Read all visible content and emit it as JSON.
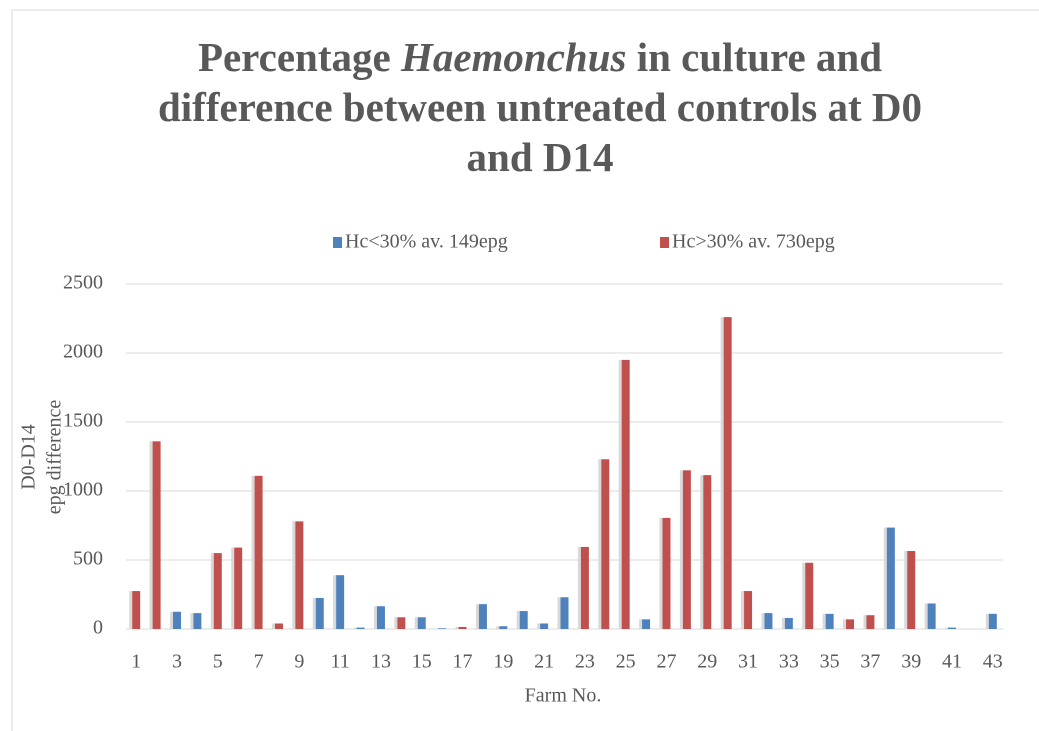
{
  "chart_data": {
    "type": "bar",
    "title_parts": [
      "Percentage ",
      "Haemonchus",
      " in culture and difference between untreated controls at D0 and D14"
    ],
    "x_label": "Farm No.",
    "y_label": [
      "D0-D14",
      "epg difference"
    ],
    "categories": [
      1,
      null,
      3,
      null,
      5,
      null,
      7,
      null,
      9,
      null,
      11,
      null,
      13,
      null,
      15,
      null,
      17,
      null,
      19,
      null,
      21,
      null,
      23,
      null,
      25,
      null,
      27,
      null,
      29,
      null,
      31,
      null,
      33,
      null,
      35,
      null,
      37,
      null,
      39,
      null,
      41,
      null,
      43
    ],
    "series": [
      {
        "name": "Hc<30% av. 149epg",
        "color": "#4f81bd",
        "values": [
          null,
          null,
          125,
          115,
          null,
          null,
          null,
          null,
          null,
          225,
          390,
          10,
          165,
          null,
          85,
          5,
          null,
          180,
          20,
          130,
          40,
          230,
          null,
          null,
          null,
          70,
          null,
          null,
          null,
          null,
          null,
          115,
          80,
          null,
          110,
          null,
          null,
          735,
          null,
          185,
          10,
          null,
          110
        ]
      },
      {
        "name": "Hc>30% av. 730epg",
        "color": "#c0504d",
        "values": [
          275,
          1360,
          null,
          null,
          550,
          590,
          1110,
          40,
          780,
          null,
          null,
          null,
          null,
          85,
          null,
          null,
          15,
          null,
          null,
          null,
          null,
          null,
          595,
          1230,
          1950,
          null,
          805,
          1150,
          1115,
          2260,
          275,
          null,
          null,
          480,
          null,
          70,
          100,
          null,
          565,
          null,
          null,
          null,
          null
        ]
      }
    ],
    "ylim": [
      0,
      2500
    ],
    "yticks": [
      0,
      500,
      1000,
      1500,
      2000,
      2500
    ],
    "grid": true,
    "legend": "top"
  }
}
